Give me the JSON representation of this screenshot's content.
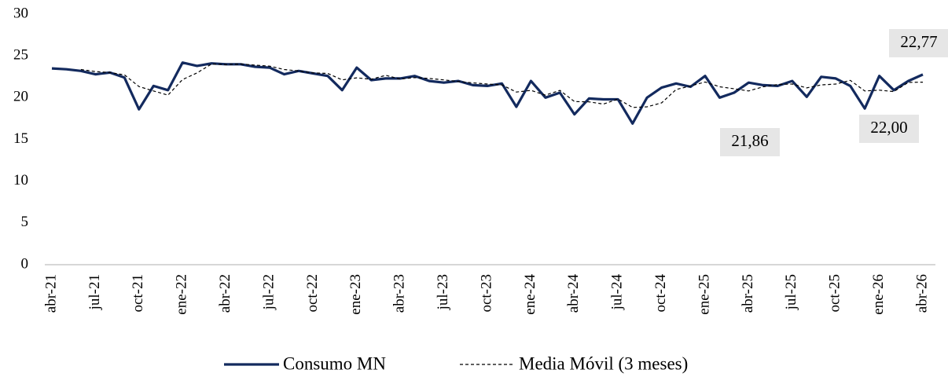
{
  "chart_data": {
    "type": "line",
    "categories": [
      "abr-21",
      null,
      null,
      "jul-21",
      null,
      null,
      "oct-21",
      null,
      null,
      "ene-22",
      null,
      null,
      "abr-22",
      null,
      null,
      "jul-22",
      null,
      null,
      "oct-22",
      null,
      null,
      "ene-23",
      null,
      null,
      "abr-23",
      null,
      null,
      "jul-23",
      null,
      null,
      "oct-23",
      null,
      null,
      "ene-24",
      null,
      null,
      "abr-24",
      null,
      null,
      "jul-24",
      null,
      null,
      "oct-24",
      null,
      null,
      "ene-25",
      null,
      null,
      "abr-25",
      null,
      null,
      "jul-25",
      null,
      null,
      "oct-25",
      null,
      null,
      "ene-26",
      null,
      null,
      "abr-26"
    ],
    "series": [
      {
        "name": "Consumo MN",
        "color": "#132a5e",
        "dashed": false,
        "values": [
          23.5,
          23.4,
          23.2,
          22.8,
          23.0,
          22.4,
          18.6,
          21.4,
          20.9,
          24.2,
          23.8,
          24.1,
          24.0,
          24.0,
          23.7,
          23.6,
          22.8,
          23.2,
          22.9,
          22.6,
          20.9,
          23.6,
          22.1,
          22.3,
          22.3,
          22.6,
          22.0,
          21.8,
          22.0,
          21.5,
          21.4,
          21.7,
          18.9,
          22.0,
          20.0,
          20.6,
          18.0,
          19.9,
          19.8,
          19.8,
          16.9,
          20.0,
          21.2,
          21.7,
          21.3,
          22.6,
          20.0,
          20.6,
          21.8,
          21.5,
          21.4,
          22.0,
          20.1,
          22.5,
          22.3,
          21.4,
          18.7,
          22.6,
          20.9,
          22.0,
          22.77
        ],
        "value_labels": [
          null,
          null,
          null,
          null,
          null,
          null,
          null,
          null,
          null,
          null,
          null,
          null,
          null,
          null,
          null,
          null,
          null,
          null,
          null,
          null,
          null,
          null,
          null,
          null,
          null,
          null,
          null,
          null,
          null,
          null,
          null,
          null,
          null,
          null,
          null,
          null,
          null,
          null,
          null,
          null,
          null,
          null,
          null,
          null,
          null,
          null,
          null,
          null,
          null,
          null,
          null,
          null,
          null,
          null,
          null,
          null,
          null,
          null,
          null,
          null,
          "22,77"
        ]
      },
      {
        "name": "Media Móvil (3 meses)",
        "color": "#000000",
        "dashed": true,
        "values": [
          null,
          null,
          23.37,
          23.13,
          23.0,
          22.73,
          21.33,
          20.8,
          20.3,
          22.17,
          22.97,
          24.03,
          23.97,
          24.03,
          23.9,
          23.77,
          23.37,
          23.2,
          22.97,
          22.9,
          22.13,
          22.37,
          22.2,
          22.67,
          22.23,
          22.4,
          22.3,
          22.13,
          21.93,
          21.77,
          21.63,
          21.53,
          20.67,
          20.87,
          20.3,
          20.87,
          19.53,
          19.5,
          19.23,
          19.83,
          18.83,
          18.9,
          19.37,
          20.97,
          21.4,
          21.87,
          21.3,
          21.07,
          20.8,
          21.3,
          21.57,
          21.63,
          21.17,
          21.53,
          21.63,
          22.07,
          20.8,
          20.9,
          20.73,
          21.83,
          21.86
        ],
        "value_labels": [
          null,
          null,
          null,
          null,
          null,
          null,
          null,
          null,
          null,
          null,
          null,
          null,
          null,
          null,
          null,
          null,
          null,
          null,
          null,
          null,
          null,
          null,
          null,
          null,
          null,
          null,
          null,
          null,
          null,
          null,
          null,
          null,
          null,
          null,
          null,
          null,
          null,
          null,
          null,
          null,
          null,
          null,
          null,
          null,
          null,
          null,
          null,
          null,
          null,
          null,
          null,
          null,
          null,
          null,
          null,
          null,
          null,
          null,
          null,
          null,
          "21,86"
        ]
      }
    ],
    "annotations": [
      "22,00"
    ],
    "ylim": [
      0,
      30
    ],
    "yticks": [
      0,
      5,
      10,
      15,
      20,
      25,
      30
    ],
    "grid": false,
    "legend": "bottom"
  }
}
